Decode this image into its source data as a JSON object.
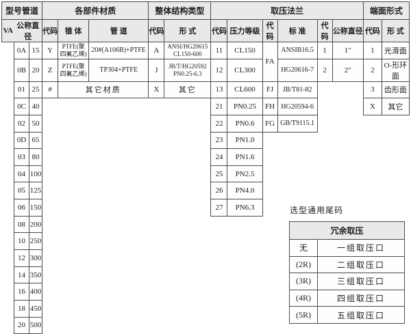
{
  "colors": {
    "header_bg": "#e9e9e9",
    "cell_bg": "#fefefe",
    "border": "#4a4a4a",
    "text": "#1c1c1c"
  },
  "header": {
    "groups": [
      "型号管道",
      "各部件材质",
      "整体结构类型",
      "取压法兰",
      "端面形式"
    ],
    "sub": [
      "VA",
      "公称直径",
      "代码",
      "锥 体",
      "管 道",
      "代码",
      "形 式",
      "代码",
      "压力等级",
      "代码",
      "标 准",
      "代码",
      "公称直径",
      "代码",
      "形 式"
    ]
  },
  "model_rows": [
    [
      "0A",
      "15"
    ],
    [
      "0B",
      "20"
    ],
    [
      "01",
      "25"
    ],
    [
      "0C",
      "40"
    ],
    [
      "02",
      "50"
    ],
    [
      "0D",
      "65"
    ],
    [
      "03",
      "80"
    ],
    [
      "04",
      "100"
    ],
    [
      "05",
      "125"
    ],
    [
      "06",
      "150"
    ],
    [
      "08",
      "200"
    ],
    [
      "10",
      "250"
    ],
    [
      "12",
      "300"
    ],
    [
      "14",
      "350"
    ],
    [
      "16",
      "400"
    ],
    [
      "18",
      "450"
    ],
    [
      "20",
      "500"
    ]
  ],
  "materials_rows": [
    {
      "code": "Y",
      "cone": "PTFE(聚\n四氟乙烯)",
      "pipe": "20#(A106B)+PTFE"
    },
    {
      "code": "Z",
      "cone": "PTFE(聚\n四氟乙烯)",
      "pipe": "TP304+PTFE"
    },
    {
      "code": "#",
      "other": "其它材质"
    }
  ],
  "structure_rows": [
    {
      "code": "A",
      "form": "ANSI/HG20615\nCL150-600"
    },
    {
      "code": "J",
      "form": "JB/T/HG20592\nPN0.25-6.3"
    },
    {
      "code": "X",
      "form": "其它"
    }
  ],
  "pressure_rows": [
    [
      "11",
      "CL150"
    ],
    [
      "12",
      "CL300"
    ],
    [
      "13",
      "CL600"
    ],
    [
      "21",
      "PN0.25"
    ],
    [
      "22",
      "PN0.6"
    ],
    [
      "23",
      "PN1.0"
    ],
    [
      "24",
      "PN1.6"
    ],
    [
      "25",
      "PN2.5"
    ],
    [
      "26",
      "PN4.0"
    ],
    [
      "27",
      "PN6.3"
    ]
  ],
  "standard_rows": [
    {
      "code": "FA",
      "stds": [
        "ANSIB16.5",
        "HG20616-7"
      ]
    },
    {
      "code": "FJ",
      "stds": [
        "JB/T81-82"
      ]
    },
    {
      "code": "FH",
      "stds": [
        "HG20594-6"
      ]
    },
    {
      "code": "FG",
      "stds": [
        "GB/T9115.1"
      ]
    }
  ],
  "tap_rows": [
    [
      "1",
      "1″"
    ],
    [
      "2",
      "2″"
    ]
  ],
  "face_rows": [
    [
      "1",
      "光滑面"
    ],
    [
      "2",
      "O-形环面"
    ],
    [
      "3",
      "齿形面"
    ],
    [
      "X",
      "其它"
    ]
  ],
  "suffix": {
    "title": "选型通用尾码",
    "header": "冗余取压",
    "rows": [
      [
        "无",
        "一组取压口"
      ],
      [
        "(2R)",
        "二组取压口"
      ],
      [
        "(3R)",
        "三组取压口"
      ],
      [
        "(4R)",
        "四组取压口"
      ],
      [
        "(5R)",
        "五组取压口"
      ]
    ]
  }
}
